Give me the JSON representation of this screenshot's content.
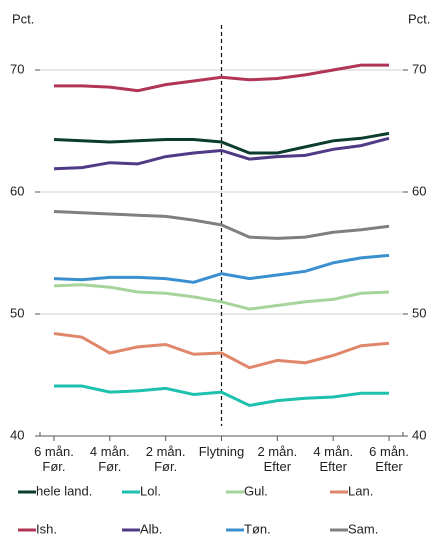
{
  "chart_data": {
    "type": "line",
    "ylabel": "Pct.",
    "y2label": "Pct.",
    "categories": [
      "6 mån. Før.",
      null,
      "4 mån. Før.",
      null,
      "2 mån. Før.",
      null,
      "Flytning",
      null,
      "2 mån. Efter",
      null,
      "4 mån. Efter",
      null,
      "6 mån. Efter"
    ],
    "ylim": [
      40,
      70
    ],
    "yticks": [
      40,
      50,
      60,
      70
    ],
    "y2lim": [
      40,
      70
    ],
    "y2ticks": [
      40,
      50,
      60,
      70
    ],
    "grid": true,
    "series": [
      {
        "name": "hele land.",
        "color": "#0b3d2e",
        "values": [
          64.3,
          64.2,
          64.1,
          64.2,
          64.3,
          64.3,
          64.1,
          63.2,
          63.2,
          63.7,
          64.2,
          64.4,
          64.8
        ]
      },
      {
        "name": "Lol.",
        "color": "#1ec0ae",
        "values": [
          44.1,
          44.1,
          43.6,
          43.7,
          43.9,
          43.4,
          43.6,
          42.5,
          42.9,
          43.1,
          43.2,
          43.5,
          43.5
        ]
      },
      {
        "name": "Gul.",
        "color": "#a6d49a",
        "values": [
          52.3,
          52.4,
          52.2,
          51.8,
          51.7,
          51.4,
          51.0,
          50.4,
          50.7,
          51.0,
          51.2,
          51.7,
          51.8
        ]
      },
      {
        "name": "Lan.",
        "color": "#e0866a",
        "values": [
          48.4,
          48.1,
          46.8,
          47.3,
          47.5,
          46.7,
          46.8,
          45.6,
          46.2,
          46.0,
          46.6,
          47.4,
          47.6
        ]
      },
      {
        "name": "Ish.",
        "color": "#b03556",
        "values": [
          68.7,
          68.7,
          68.6,
          68.3,
          68.8,
          69.1,
          69.4,
          69.2,
          69.3,
          69.6,
          70.0,
          70.4,
          70.4
        ]
      },
      {
        "name": "Alb.",
        "color": "#4f3a86",
        "values": [
          61.9,
          62.0,
          62.4,
          62.3,
          62.9,
          63.2,
          63.4,
          62.7,
          62.9,
          63.0,
          63.5,
          63.8,
          64.4
        ]
      },
      {
        "name": "Tøn.",
        "color": "#3a8fd0",
        "values": [
          52.9,
          52.8,
          53.0,
          53.0,
          52.9,
          52.6,
          53.3,
          52.9,
          53.2,
          53.5,
          54.2,
          54.6,
          54.8
        ]
      },
      {
        "name": "Sam.",
        "color": "#7f7f7f",
        "values": [
          58.4,
          58.3,
          58.2,
          58.1,
          58.0,
          57.7,
          57.3,
          56.3,
          56.2,
          56.3,
          56.7,
          56.9,
          57.2
        ]
      }
    ]
  }
}
